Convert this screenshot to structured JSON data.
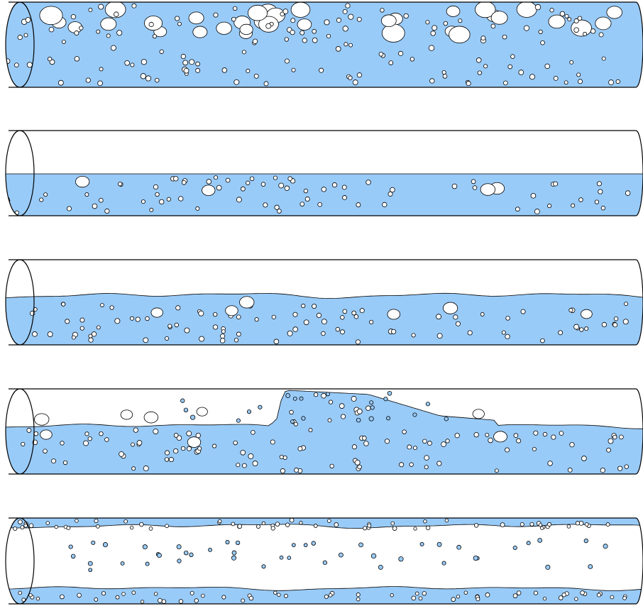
{
  "figure": {
    "colors": {
      "liquid": "#99cbf8",
      "gas": "#ffffff",
      "outline": "#000000",
      "droplet": "#99cbf8",
      "bubble": "#ffffff",
      "background": "#ffffff"
    },
    "panels": [
      {
        "id": "bubbly-flow",
        "icon": "pipe-bubbly-flow-icon"
      },
      {
        "id": "stratified-smooth-flow",
        "icon": "pipe-stratified-smooth-icon"
      },
      {
        "id": "stratified-wavy-flow",
        "icon": "pipe-stratified-wavy-icon"
      },
      {
        "id": "slug-flow",
        "icon": "pipe-slug-flow-icon"
      },
      {
        "id": "annular-flow",
        "icon": "pipe-annular-flow-icon"
      }
    ]
  }
}
